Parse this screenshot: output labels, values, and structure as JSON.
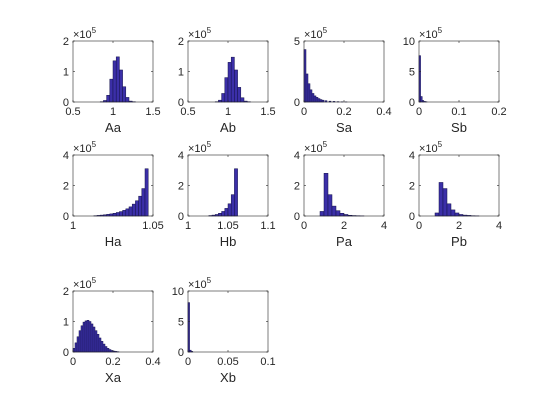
{
  "chart_data": [
    {
      "type": "bar",
      "xlabel": "Aa",
      "exponent_label": "5",
      "xlim": [
        0.5,
        1.5
      ],
      "ylim": [
        0,
        2
      ],
      "xticks": [
        "0.5",
        "1",
        "1.5"
      ],
      "yticks": [
        "0",
        "1",
        "2"
      ],
      "x": [
        0.86,
        0.9,
        0.94,
        0.98,
        1.02,
        1.06,
        1.1,
        1.14,
        1.18,
        1.22,
        1.26
      ],
      "values": [
        0.01,
        0.05,
        0.22,
        0.75,
        1.35,
        1.48,
        1.05,
        0.5,
        0.15,
        0.03,
        0.01
      ],
      "bin_width": 0.04
    },
    {
      "type": "bar",
      "xlabel": "Ab",
      "exponent_label": "5",
      "xlim": [
        0.5,
        1.5
      ],
      "ylim": [
        0,
        2
      ],
      "xticks": [
        "0.5",
        "1",
        "1.5"
      ],
      "yticks": [
        "0",
        "1",
        "2"
      ],
      "x": [
        0.86,
        0.9,
        0.94,
        0.98,
        1.02,
        1.06,
        1.1,
        1.14,
        1.18,
        1.22,
        1.26
      ],
      "values": [
        0.01,
        0.06,
        0.28,
        0.8,
        1.3,
        1.47,
        1.05,
        0.48,
        0.14,
        0.03,
        0.01
      ],
      "bin_width": 0.04
    },
    {
      "type": "bar",
      "xlabel": "Sa",
      "exponent_label": "5",
      "xlim": [
        0,
        0.4
      ],
      "ylim": [
        0,
        5
      ],
      "xticks": [
        "0",
        "0.2",
        "0.4"
      ],
      "yticks": [
        "0",
        "5"
      ],
      "x": [
        0.005,
        0.015,
        0.025,
        0.035,
        0.045,
        0.055,
        0.065,
        0.075,
        0.085,
        0.095,
        0.11,
        0.13,
        0.15,
        0.17,
        0.19,
        0.21
      ],
      "values": [
        4.3,
        2.3,
        1.5,
        1.0,
        0.7,
        0.5,
        0.38,
        0.28,
        0.2,
        0.15,
        0.11,
        0.07,
        0.05,
        0.03,
        0.02,
        0.01
      ],
      "bin_width": 0.01
    },
    {
      "type": "bar",
      "xlabel": "Sb",
      "exponent_label": "5",
      "xlim": [
        0,
        0.2
      ],
      "ylim": [
        0,
        10
      ],
      "xticks": [
        "0",
        "0.1",
        "0.2"
      ],
      "yticks": [
        "0",
        "5",
        "10"
      ],
      "x": [
        0.002,
        0.006,
        0.01,
        0.014,
        0.018
      ],
      "values": [
        7.6,
        0.9,
        0.25,
        0.1,
        0.05
      ],
      "bin_width": 0.004
    },
    {
      "type": "bar",
      "xlabel": "Ha",
      "exponent_label": "5",
      "xlim": [
        1,
        1.05
      ],
      "ylim": [
        0,
        4
      ],
      "xticks": [
        "1",
        "1.05"
      ],
      "yticks": [
        "0",
        "2",
        "4"
      ],
      "x": [
        1.014,
        1.016,
        1.018,
        1.02,
        1.022,
        1.024,
        1.026,
        1.028,
        1.03,
        1.032,
        1.034,
        1.036,
        1.038,
        1.04,
        1.042,
        1.044,
        1.046
      ],
      "values": [
        0.02,
        0.04,
        0.06,
        0.08,
        0.11,
        0.14,
        0.18,
        0.23,
        0.29,
        0.37,
        0.47,
        0.6,
        0.78,
        1.0,
        1.3,
        1.8,
        3.1
      ],
      "bin_width": 0.002
    },
    {
      "type": "bar",
      "xlabel": "Hb",
      "exponent_label": "5",
      "xlim": [
        1,
        1.1
      ],
      "ylim": [
        0,
        4
      ],
      "xticks": [
        "1",
        "1.05",
        "1.1"
      ],
      "yticks": [
        "0",
        "2",
        "4"
      ],
      "x": [
        1.028,
        1.032,
        1.036,
        1.04,
        1.044,
        1.048,
        1.052,
        1.056,
        1.06
      ],
      "values": [
        0.03,
        0.06,
        0.1,
        0.18,
        0.3,
        0.5,
        0.8,
        1.4,
        3.1
      ],
      "bin_width": 0.004
    },
    {
      "type": "bar",
      "xlabel": "Pa",
      "exponent_label": "5",
      "xlim": [
        0,
        4
      ],
      "ylim": [
        0,
        4
      ],
      "xticks": [
        "0",
        "2",
        "4"
      ],
      "yticks": [
        "0",
        "2",
        "4"
      ],
      "x": [
        0.9,
        1.1,
        1.3,
        1.5,
        1.7,
        1.9,
        2.1,
        2.3,
        2.5,
        2.7,
        2.9
      ],
      "values": [
        0.3,
        2.8,
        1.4,
        0.65,
        0.35,
        0.18,
        0.1,
        0.05,
        0.03,
        0.02,
        0.01
      ],
      "bin_width": 0.2
    },
    {
      "type": "bar",
      "xlabel": "Pb",
      "exponent_label": "5",
      "xlim": [
        0,
        4
      ],
      "ylim": [
        0,
        4
      ],
      "xticks": [
        "0",
        "2",
        "4"
      ],
      "yticks": [
        "0",
        "2",
        "4"
      ],
      "x": [
        0.9,
        1.1,
        1.3,
        1.5,
        1.7,
        1.9,
        2.1,
        2.3,
        2.5,
        2.7,
        2.9
      ],
      "values": [
        0.2,
        2.2,
        1.8,
        0.8,
        0.4,
        0.2,
        0.1,
        0.06,
        0.04,
        0.02,
        0.01
      ],
      "bin_width": 0.2
    },
    {
      "type": "bar",
      "xlabel": "Xa",
      "exponent_label": "5",
      "xlim": [
        0,
        0.4
      ],
      "ylim": [
        0,
        2
      ],
      "xticks": [
        "0",
        "0.2",
        "0.4"
      ],
      "yticks": [
        "0",
        "1",
        "2"
      ],
      "x": [
        0.005,
        0.015,
        0.025,
        0.035,
        0.045,
        0.055,
        0.065,
        0.075,
        0.085,
        0.095,
        0.105,
        0.115,
        0.125,
        0.135,
        0.145,
        0.155,
        0.165,
        0.175,
        0.185,
        0.195,
        0.205,
        0.215,
        0.225
      ],
      "values": [
        0.12,
        0.3,
        0.5,
        0.7,
        0.86,
        0.98,
        1.02,
        1.04,
        1.0,
        0.92,
        0.82,
        0.7,
        0.58,
        0.46,
        0.35,
        0.26,
        0.18,
        0.12,
        0.08,
        0.05,
        0.03,
        0.02,
        0.01
      ],
      "bin_width": 0.01
    },
    {
      "type": "bar",
      "xlabel": "Xb",
      "exponent_label": "5",
      "xlim": [
        0,
        0.1
      ],
      "ylim": [
        0,
        10
      ],
      "xticks": [
        "0",
        "0.05",
        "0.1"
      ],
      "yticks": [
        "0",
        "5",
        "10"
      ],
      "x": [
        0.001,
        0.003,
        0.005
      ],
      "values": [
        8.1,
        0.3,
        0.1
      ],
      "bin_width": 0.002
    }
  ]
}
